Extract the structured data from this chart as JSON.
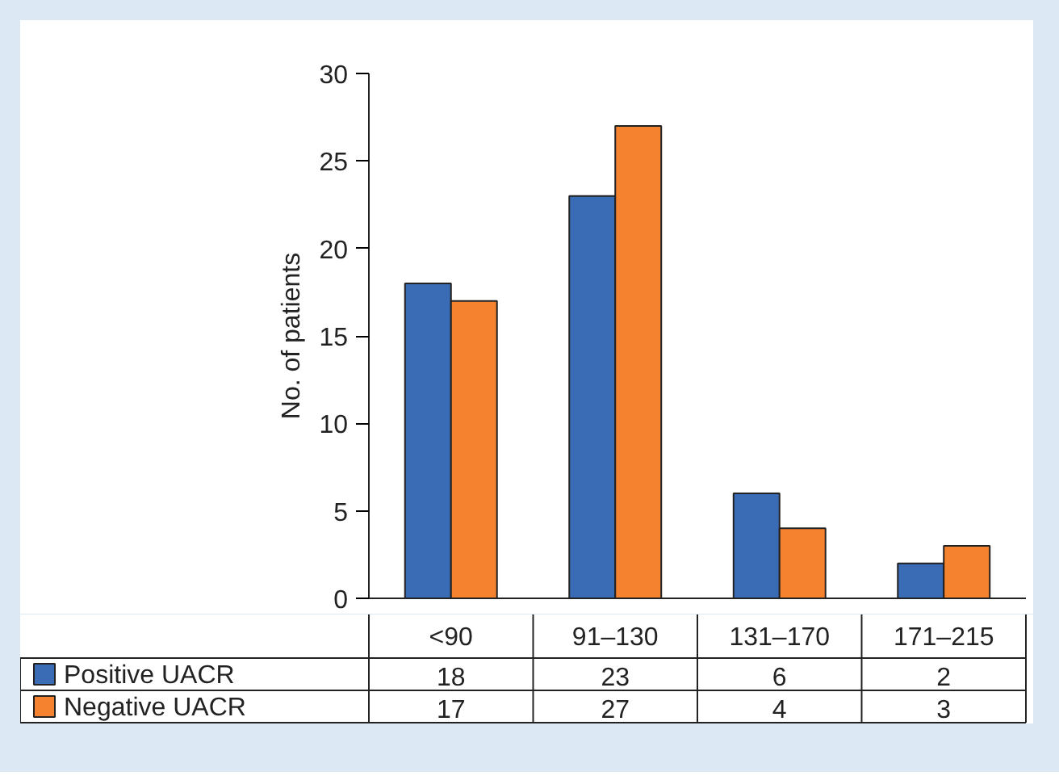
{
  "chart_data": {
    "type": "bar",
    "ylabel": "No. of patients",
    "categories": [
      "<90",
      "91–130",
      "131–170",
      "171–215"
    ],
    "series": [
      {
        "name": "Positive UACR",
        "color": "#3a6cb6",
        "values": [
          18,
          23,
          6,
          2
        ]
      },
      {
        "name": "Negative UACR",
        "color": "#f5822f",
        "values": [
          17,
          27,
          4,
          3
        ]
      }
    ],
    "ylim": [
      0,
      30
    ],
    "yticks": [
      0,
      5,
      10,
      15,
      20,
      25,
      30
    ],
    "grid": false,
    "legend": "bottom",
    "data_labels": true
  }
}
